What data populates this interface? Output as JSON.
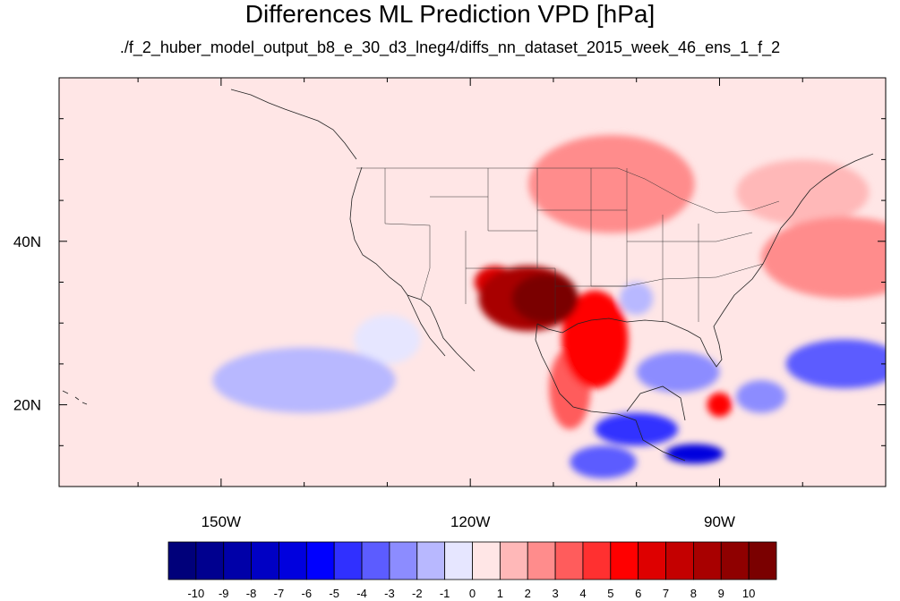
{
  "title": "Differences ML Prediction VPD [hPa]",
  "subtitle": "./f_2_huber_model_output_b8_e_30_d3_lneg4/diffs_nn_dataset_2015_week_46_ens_1_f_2",
  "map": {
    "lon_range": [
      -169.5,
      -70
    ],
    "lat_range": [
      10,
      60
    ],
    "lon_ticks": [
      {
        "value": -150,
        "label": "150W"
      },
      {
        "value": -120,
        "label": "120W"
      },
      {
        "value": -90,
        "label": "90W"
      }
    ],
    "lat_ticks": [
      {
        "value": 40,
        "label": "40N"
      },
      {
        "value": 20,
        "label": "20N"
      }
    ],
    "background_color": "#ffe6e6"
  },
  "colorbar": {
    "colors": [
      "#00007a",
      "#00008f",
      "#0000a8",
      "#0000c4",
      "#0000de",
      "#0000ff",
      "#3030ff",
      "#5c5cff",
      "#8c8cff",
      "#b8b8ff",
      "#e6e6ff",
      "#ffe6e6",
      "#ffb8b8",
      "#ff8c8c",
      "#ff5c5c",
      "#ff3030",
      "#ff0000",
      "#de0000",
      "#c40000",
      "#a80000",
      "#8f0000",
      "#7a0000"
    ],
    "labels": [
      "-10",
      "-9",
      "-8",
      "-7",
      "-6",
      "-5",
      "-4",
      "-3",
      "-2",
      "-1",
      "0",
      "1",
      "2",
      "3",
      "4",
      "5",
      "6",
      "7",
      "8",
      "9",
      "10"
    ]
  },
  "chart_data": {
    "type": "heatmap",
    "title": "Differences ML Prediction VPD [hPa]",
    "subtitle": "./f_2_huber_model_output_b8_e_30_d3_lneg4/diffs_nn_dataset_2015_week_46_ens_1_f_2",
    "variable_units": "hPa",
    "value_range": [
      -10,
      10
    ],
    "contour_levels": [
      -10,
      -9,
      -8,
      -7,
      -6,
      -5,
      -4,
      -3,
      -2,
      -1,
      0,
      1,
      2,
      3,
      4,
      5,
      6,
      7,
      8,
      9,
      10
    ],
    "regions": [
      {
        "lon": -113,
        "lat": 33,
        "rx": 6,
        "ry": 4,
        "value": 8
      },
      {
        "lon": -111,
        "lat": 33,
        "rx": 4,
        "ry": 3,
        "value": 10
      },
      {
        "lon": -117,
        "lat": 35,
        "rx": 2.5,
        "ry": 2,
        "value": 6
      },
      {
        "lon": -105,
        "lat": 28,
        "rx": 4,
        "ry": 6,
        "value": 5
      },
      {
        "lon": -108,
        "lat": 22,
        "rx": 2.5,
        "ry": 5,
        "value": 3
      },
      {
        "lon": -103,
        "lat": 47,
        "rx": 10,
        "ry": 6,
        "value": 2
      },
      {
        "lon": -75,
        "lat": 38,
        "rx": 10,
        "ry": 5,
        "value": 2
      },
      {
        "lon": -80,
        "lat": 46,
        "rx": 8,
        "ry": 4,
        "value": 1
      },
      {
        "lon": -90,
        "lat": 20,
        "rx": 1.5,
        "ry": 1.5,
        "value": 5
      },
      {
        "lon": -140,
        "lat": 23,
        "rx": 11,
        "ry": 4,
        "value": -2
      },
      {
        "lon": -130,
        "lat": 28,
        "rx": 4,
        "ry": 3,
        "value": -1
      },
      {
        "lon": -100,
        "lat": 17,
        "rx": 5,
        "ry": 2,
        "value": -5
      },
      {
        "lon": -93,
        "lat": 14,
        "rx": 3.5,
        "ry": 1.2,
        "value": -7
      },
      {
        "lon": -104,
        "lat": 13,
        "rx": 4,
        "ry": 2,
        "value": -4
      },
      {
        "lon": -75,
        "lat": 25,
        "rx": 7,
        "ry": 3,
        "value": -4
      },
      {
        "lon": -95,
        "lat": 24,
        "rx": 5,
        "ry": 2.5,
        "value": -3
      },
      {
        "lon": -85,
        "lat": 21,
        "rx": 3,
        "ry": 2,
        "value": -3
      },
      {
        "lon": -100,
        "lat": 33,
        "rx": 2,
        "ry": 2,
        "value": -2
      }
    ]
  }
}
